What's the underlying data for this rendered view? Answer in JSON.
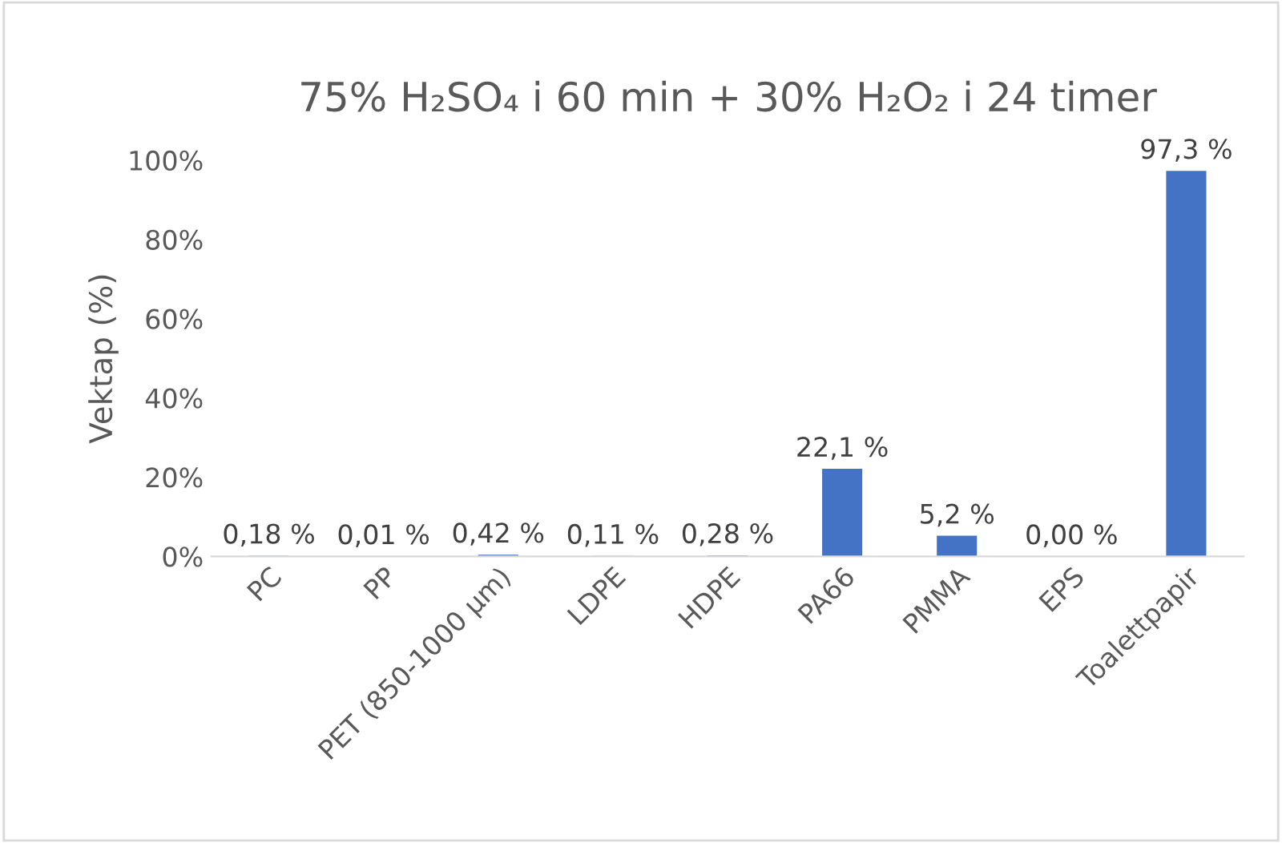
{
  "chart_data": {
    "type": "bar",
    "title": "75% H₂SO₄ i 60 min + 30% H₂O₂ i 24 timer",
    "ylabel": "Vektap (%)",
    "categories": [
      "PC",
      "PP",
      "PET (850-1000 µm)",
      "LDPE",
      "HDPE",
      "PA66",
      "PMMA",
      "EPS",
      "Toalettpapir"
    ],
    "values": [
      0.18,
      0.01,
      0.42,
      0.11,
      0.28,
      22.1,
      5.2,
      0.0,
      97.3
    ],
    "value_labels": [
      "0,18 %",
      "0,01 %",
      "0,42 %",
      "0,11 %",
      "0,28 %",
      "22,1 %",
      "5,2 %",
      "0,00 %",
      "97,3 %"
    ],
    "color": "#4472c4",
    "ylim": [
      0,
      100
    ],
    "yticks": [
      {
        "value": 0,
        "label": "0%"
      },
      {
        "value": 20,
        "label": "20%"
      },
      {
        "value": 40,
        "label": "40%"
      },
      {
        "value": 60,
        "label": "60%"
      },
      {
        "value": 80,
        "label": "80%"
      },
      {
        "value": 100,
        "label": "100%"
      }
    ],
    "grid": false,
    "legend": false
  }
}
